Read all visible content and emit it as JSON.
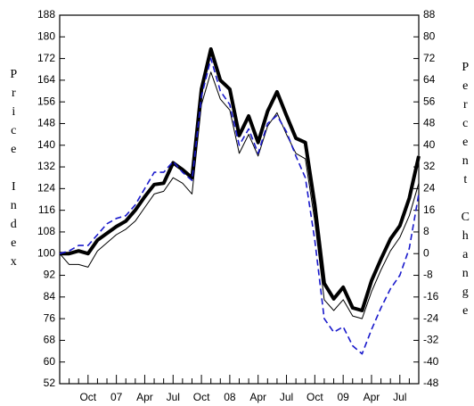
{
  "chart_data": {
    "type": "line",
    "y_label": "Price Index",
    "y2_label": "Percent Change",
    "categories": [
      null,
      null,
      null,
      "Oct",
      null,
      null,
      "07",
      null,
      null,
      "Apr",
      null,
      null,
      "Jul",
      null,
      null,
      "Oct",
      null,
      null,
      "08",
      null,
      null,
      "Apr",
      null,
      null,
      "Jul",
      null,
      null,
      "Oct",
      null,
      null,
      "09",
      null,
      null,
      "Apr",
      null,
      null,
      "Jul",
      null,
      null
    ],
    "series": [
      {
        "color": "#000000",
        "width": 4,
        "dash": false,
        "values": [
          100,
          100,
          101,
          100,
          105,
          107.5,
          110,
          112,
          116,
          121,
          125.5,
          126,
          133.5,
          131,
          128,
          160.7,
          175.5,
          164,
          160.7,
          143.6,
          150.8,
          141,
          152.5,
          159.7,
          151,
          142.6,
          141,
          118,
          89,
          83.3,
          87.6,
          80,
          79,
          90,
          98,
          105.4,
          110.3,
          120.5,
          136
        ]
      },
      {
        "color": "#000000",
        "width": 1,
        "dash": false,
        "values": [
          100,
          96,
          96,
          95,
          101,
          104,
          107,
          109,
          112,
          117,
          122,
          123,
          128,
          126,
          122,
          155,
          167,
          157,
          153,
          137,
          144,
          136,
          147,
          152,
          144,
          137,
          135,
          112,
          83,
          79,
          83,
          77,
          76,
          86,
          94,
          101,
          106,
          114,
          126
        ]
      },
      {
        "color": "#1a1acc",
        "width": 1.6,
        "dash": true,
        "values": [
          100,
          101,
          103,
          103,
          107,
          111,
          113,
          114,
          118,
          124,
          130,
          130,
          134,
          130,
          127,
          158,
          172,
          160,
          155,
          140,
          146,
          137,
          148,
          151,
          145,
          136,
          128,
          105,
          76,
          71,
          73,
          66,
          63,
          72,
          80,
          87,
          92,
          102,
          122
        ]
      }
    ],
    "ylim": [
      52,
      188
    ],
    "yticks": [
      52,
      60,
      68,
      76,
      84,
      92,
      100,
      108,
      116,
      124,
      132,
      140,
      148,
      156,
      164,
      172,
      180,
      188
    ],
    "y2lim": [
      -48,
      88
    ],
    "y2ticks": [
      -48,
      -40,
      -32,
      -24,
      -16,
      -8,
      0,
      8,
      16,
      24,
      32,
      40,
      48,
      56,
      64,
      72,
      80,
      88
    ],
    "grid": false
  }
}
